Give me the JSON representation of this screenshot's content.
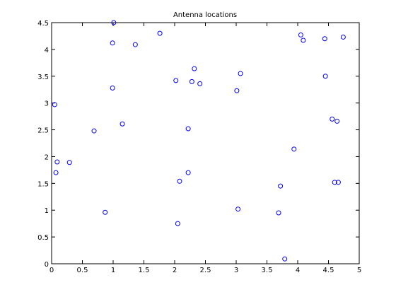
{
  "chart_data": {
    "type": "scatter",
    "title": "Antenna locations",
    "series": [
      {
        "color": "#0000ff",
        "x": [
          0.05,
          0.09,
          0.07,
          0.29,
          0.69,
          0.87,
          0.99,
          0.99,
          1.01,
          1.15,
          1.36,
          1.76,
          2.02,
          2.05,
          2.08,
          2.22,
          2.22,
          2.28,
          2.32,
          2.41,
          3.01,
          3.03,
          3.07,
          3.69,
          3.72,
          3.79,
          3.94,
          4.05,
          4.09,
          4.44,
          4.45,
          4.56,
          4.6,
          4.64,
          4.66,
          4.74
        ],
        "values": [
          2.97,
          1.9,
          1.7,
          1.89,
          2.48,
          0.96,
          3.28,
          4.12,
          4.5,
          2.61,
          4.09,
          4.3,
          3.42,
          0.75,
          1.54,
          1.7,
          2.52,
          3.4,
          3.64,
          3.36,
          3.23,
          1.02,
          3.55,
          0.95,
          1.45,
          0.09,
          2.14,
          4.27,
          4.17,
          4.2,
          3.5,
          2.7,
          1.52,
          2.66,
          1.52,
          4.23
        ]
      }
    ],
    "xlim": [
      0,
      5
    ],
    "xticks": [
      0,
      0.5,
      1,
      1.5,
      2,
      2.5,
      3,
      3.5,
      4,
      4.5,
      5
    ],
    "ylim": [
      0,
      4.5
    ],
    "yticks": [
      0,
      0.5,
      1,
      1.5,
      2,
      2.5,
      3,
      3.5,
      4,
      4.5
    ],
    "grid": false
  }
}
